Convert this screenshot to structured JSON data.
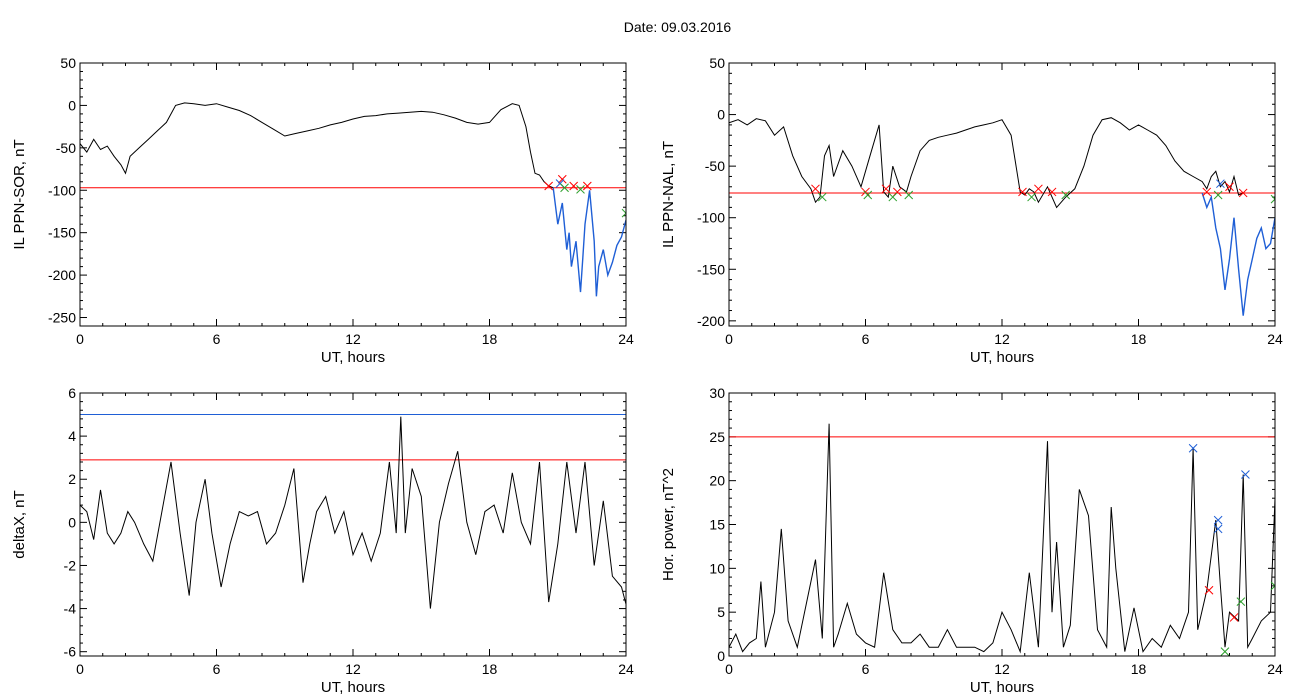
{
  "page": {
    "title": "Date:  09.03.2016"
  },
  "chart_data": [
    {
      "id": "p1",
      "type": "line",
      "xlabel": "UT, hours",
      "ylabel": "IL PPN-SOR, nT",
      "xlim": [
        0,
        24
      ],
      "ylim": [
        -260,
        50
      ],
      "xticks": [
        0,
        6,
        12,
        18,
        24
      ],
      "xtick_labels": [
        "0",
        "6",
        "12",
        "18",
        "24"
      ],
      "yticks": [
        50,
        0,
        -50,
        -100,
        -150,
        -200,
        -250
      ],
      "ytick_labels": [
        "50",
        "0",
        "-50",
        "-100",
        "-150",
        "-200",
        "-250"
      ],
      "series": [
        {
          "color": "#000000",
          "x": [
            0,
            0.3,
            0.6,
            0.9,
            1.2,
            1.5,
            1.8,
            2.0,
            2.2,
            2.6,
            3.0,
            3.4,
            3.8,
            4.2,
            4.6,
            5.0,
            5.5,
            6.0,
            6.5,
            7.0,
            7.5,
            8.0,
            8.5,
            9.0,
            9.5,
            10.0,
            10.5,
            11.0,
            11.5,
            12.0,
            12.5,
            13.0,
            13.5,
            14.0,
            14.5,
            15.0,
            15.5,
            16.0,
            16.5,
            17.0,
            17.5,
            18.0,
            18.5,
            19.0,
            19.3,
            19.6,
            19.8,
            20.0,
            20.2,
            20.4,
            20.6,
            20.8
          ],
          "y": [
            -45,
            -55,
            -40,
            -52,
            -48,
            -60,
            -70,
            -80,
            -60,
            -50,
            -40,
            -30,
            -20,
            0,
            3,
            2,
            0,
            2,
            -2,
            -6,
            -12,
            -20,
            -28,
            -36,
            -33,
            -30,
            -27,
            -23,
            -20,
            -16,
            -13,
            -12,
            -10,
            -9,
            -8,
            -7,
            -8,
            -11,
            -15,
            -20,
            -22,
            -20,
            -5,
            2,
            0,
            -25,
            -55,
            -80,
            -82,
            -90,
            -95,
            -97
          ]
        },
        {
          "color": "#1f5fd6",
          "x": [
            20.8,
            21.0,
            21.2,
            21.4,
            21.5,
            21.6,
            21.8,
            22.0,
            22.1,
            22.2,
            22.4,
            22.6,
            22.7,
            22.8,
            23.0,
            23.2,
            23.4,
            23.6,
            23.8,
            24.0
          ],
          "y": [
            -97,
            -140,
            -115,
            -170,
            -150,
            -190,
            -160,
            -220,
            -180,
            -140,
            -100,
            -160,
            -225,
            -190,
            -170,
            -200,
            -185,
            -165,
            -155,
            -135
          ]
        }
      ],
      "threshold_lines": [
        {
          "y": -97,
          "color": "#ff0000"
        }
      ],
      "markers": [
        {
          "x": 20.6,
          "y": -95,
          "color": "#ff0000"
        },
        {
          "x": 21.2,
          "y": -87,
          "color": "#ff0000"
        },
        {
          "x": 21.7,
          "y": -95,
          "color": "#ff0000"
        },
        {
          "x": 22.3,
          "y": -95,
          "color": "#ff0000"
        },
        {
          "x": 21.1,
          "y": -92,
          "color": "#1f5fd6"
        },
        {
          "x": 21.3,
          "y": -97,
          "color": "#2ca02c"
        },
        {
          "x": 22.0,
          "y": -99,
          "color": "#2ca02c"
        },
        {
          "x": 24.0,
          "y": -127,
          "color": "#2ca02c"
        }
      ]
    },
    {
      "id": "p2",
      "type": "line",
      "xlabel": "UT, hours",
      "ylabel": "IL PPN-NAL, nT",
      "xlim": [
        0,
        24
      ],
      "ylim": [
        -205,
        50
      ],
      "xticks": [
        0,
        6,
        12,
        18,
        24
      ],
      "xtick_labels": [
        "0",
        "6",
        "12",
        "18",
        "24"
      ],
      "yticks": [
        50,
        0,
        -50,
        -100,
        -150,
        -200
      ],
      "ytick_labels": [
        "50",
        "0",
        "-50",
        "-100",
        "-150",
        "-200"
      ],
      "series": [
        {
          "color": "#000000",
          "x": [
            0,
            0.4,
            0.8,
            1.2,
            1.6,
            2.0,
            2.4,
            2.8,
            3.2,
            3.6,
            3.8,
            4.0,
            4.2,
            4.4,
            4.6,
            5.0,
            5.4,
            5.8,
            6.2,
            6.6,
            6.8,
            7.0,
            7.2,
            7.5,
            7.8,
            8.0,
            8.4,
            8.8,
            9.2,
            9.6,
            10.0,
            10.4,
            10.8,
            11.2,
            11.6,
            12.0,
            12.4,
            12.8,
            13.0,
            13.2,
            13.4,
            13.6,
            14.0,
            14.4,
            14.8,
            15.2,
            15.6,
            16.0,
            16.4,
            16.8,
            17.2,
            17.6,
            18.0,
            18.4,
            18.8,
            19.2,
            19.6,
            20.0,
            20.4,
            20.8,
            21.0,
            21.2,
            21.4,
            21.6,
            21.8,
            22.0,
            22.2,
            22.4,
            22.6
          ],
          "y": [
            -8,
            -5,
            -10,
            -4,
            -6,
            -20,
            -12,
            -40,
            -60,
            -72,
            -85,
            -80,
            -40,
            -30,
            -60,
            -35,
            -50,
            -70,
            -40,
            -10,
            -75,
            -80,
            -50,
            -70,
            -75,
            -60,
            -35,
            -25,
            -22,
            -20,
            -18,
            -15,
            -12,
            -10,
            -8,
            -5,
            -20,
            -75,
            -78,
            -72,
            -75,
            -85,
            -70,
            -90,
            -80,
            -72,
            -50,
            -20,
            -5,
            -3,
            -8,
            -15,
            -10,
            -15,
            -20,
            -30,
            -45,
            -55,
            -60,
            -65,
            -72,
            -60,
            -55,
            -70,
            -65,
            -75,
            -60,
            -78,
            -76
          ]
        },
        {
          "color": "#1f5fd6",
          "x": [
            20.8,
            21.0,
            21.2,
            21.4,
            21.6,
            21.8,
            22.0,
            22.2,
            22.4,
            22.6,
            22.8,
            23.0,
            23.2,
            23.4,
            23.6,
            23.8,
            24.0
          ],
          "y": [
            -76,
            -90,
            -80,
            -110,
            -130,
            -170,
            -140,
            -100,
            -150,
            -195,
            -160,
            -140,
            -120,
            -110,
            -130,
            -125,
            -100
          ]
        }
      ],
      "threshold_lines": [
        {
          "y": -76,
          "color": "#ff0000"
        }
      ],
      "markers": [
        {
          "x": 3.8,
          "y": -72,
          "color": "#ff0000"
        },
        {
          "x": 6.0,
          "y": -75,
          "color": "#ff0000"
        },
        {
          "x": 6.9,
          "y": -72,
          "color": "#ff0000"
        },
        {
          "x": 7.4,
          "y": -75,
          "color": "#ff0000"
        },
        {
          "x": 12.9,
          "y": -75,
          "color": "#ff0000"
        },
        {
          "x": 13.6,
          "y": -72,
          "color": "#ff0000"
        },
        {
          "x": 14.2,
          "y": -75,
          "color": "#ff0000"
        },
        {
          "x": 21.0,
          "y": -75,
          "color": "#ff0000"
        },
        {
          "x": 22.0,
          "y": -70,
          "color": "#ff0000"
        },
        {
          "x": 22.6,
          "y": -76,
          "color": "#ff0000"
        },
        {
          "x": 4.1,
          "y": -80,
          "color": "#2ca02c"
        },
        {
          "x": 6.1,
          "y": -78,
          "color": "#2ca02c"
        },
        {
          "x": 7.2,
          "y": -80,
          "color": "#2ca02c"
        },
        {
          "x": 7.9,
          "y": -78,
          "color": "#2ca02c"
        },
        {
          "x": 13.3,
          "y": -80,
          "color": "#2ca02c"
        },
        {
          "x": 14.8,
          "y": -78,
          "color": "#2ca02c"
        },
        {
          "x": 21.5,
          "y": -78,
          "color": "#2ca02c"
        },
        {
          "x": 24.0,
          "y": -82,
          "color": "#2ca02c"
        },
        {
          "x": 21.6,
          "y": -67,
          "color": "#1f5fd6"
        }
      ]
    },
    {
      "id": "p3",
      "type": "line",
      "xlabel": "UT, hours",
      "ylabel": "deltaX, nT",
      "xlim": [
        0,
        24
      ],
      "ylim": [
        -6.2,
        6
      ],
      "xticks": [
        0,
        6,
        12,
        18,
        24
      ],
      "xtick_labels": [
        "0",
        "6",
        "12",
        "18",
        "24"
      ],
      "yticks": [
        6,
        4,
        2,
        0,
        -2,
        -4,
        -6
      ],
      "ytick_labels": [
        "6",
        "4",
        "2",
        "0",
        "-2",
        "-4",
        "-6"
      ],
      "series": [
        {
          "color": "#000000",
          "x": [
            0,
            0.3,
            0.6,
            0.9,
            1.2,
            1.5,
            1.8,
            2.1,
            2.4,
            2.8,
            3.2,
            3.6,
            4.0,
            4.4,
            4.8,
            5.1,
            5.5,
            5.8,
            6.2,
            6.6,
            7.0,
            7.4,
            7.8,
            8.2,
            8.6,
            9.0,
            9.4,
            9.8,
            10.1,
            10.4,
            10.8,
            11.2,
            11.6,
            12.0,
            12.4,
            12.8,
            13.2,
            13.6,
            13.9,
            14.1,
            14.3,
            14.6,
            15.0,
            15.4,
            15.8,
            16.2,
            16.6,
            17.0,
            17.4,
            17.8,
            18.2,
            18.6,
            19.0,
            19.4,
            19.8,
            20.2,
            20.6,
            21.0,
            21.4,
            21.8,
            22.2,
            22.6,
            23.0,
            23.4,
            23.8,
            24.0
          ],
          "y": [
            0.8,
            0.5,
            -0.8,
            1.5,
            -0.5,
            -1.0,
            -0.5,
            0.5,
            0,
            -1.0,
            -1.8,
            0.5,
            2.8,
            -0.5,
            -3.4,
            0,
            2.0,
            -0.5,
            -3.0,
            -1.0,
            0.5,
            0.3,
            0.5,
            -1.0,
            -0.5,
            0.8,
            2.5,
            -2.8,
            -1.0,
            0.5,
            1.2,
            -0.5,
            0.5,
            -1.5,
            -0.5,
            -1.8,
            -0.5,
            2.8,
            -0.5,
            4.9,
            -0.5,
            2.5,
            1.2,
            -4.0,
            0,
            1.8,
            3.3,
            0,
            -1.5,
            0.5,
            0.8,
            -0.5,
            2.3,
            0,
            -1.0,
            2.8,
            -3.7,
            -1.0,
            2.8,
            -0.5,
            2.8,
            -2.0,
            1.0,
            -2.5,
            -3.0,
            -3.8
          ]
        }
      ],
      "threshold_lines": [
        {
          "y": 5.0,
          "color": "#1f5fd6"
        },
        {
          "y": 2.9,
          "color": "#ff0000"
        }
      ],
      "markers": []
    },
    {
      "id": "p4",
      "type": "line",
      "xlabel": "UT, hours",
      "ylabel": "Hor. power, nT^2",
      "xlim": [
        0,
        24
      ],
      "ylim": [
        0,
        30
      ],
      "xticks": [
        0,
        6,
        12,
        18,
        24
      ],
      "xtick_labels": [
        "0",
        "6",
        "12",
        "18",
        "24"
      ],
      "yticks": [
        30,
        25,
        20,
        15,
        10,
        5,
        0
      ],
      "ytick_labels": [
        "30",
        "25",
        "20",
        "15",
        "10",
        "5",
        "0"
      ],
      "series": [
        {
          "color": "#000000",
          "x": [
            0,
            0.3,
            0.6,
            0.9,
            1.2,
            1.4,
            1.6,
            2.0,
            2.3,
            2.6,
            3.0,
            3.4,
            3.8,
            4.1,
            4.4,
            4.6,
            4.8,
            5.2,
            5.6,
            6.0,
            6.4,
            6.8,
            7.2,
            7.6,
            8.0,
            8.4,
            8.8,
            9.2,
            9.6,
            10.0,
            10.4,
            10.8,
            11.2,
            11.6,
            12.0,
            12.4,
            12.8,
            13.2,
            13.6,
            14.0,
            14.2,
            14.4,
            14.7,
            15.0,
            15.4,
            15.8,
            16.2,
            16.6,
            16.8,
            17.0,
            17.4,
            17.8,
            18.2,
            18.6,
            19.0,
            19.4,
            19.8,
            20.2,
            20.4,
            20.6,
            21.0,
            21.4,
            21.6,
            21.8,
            22.0,
            22.4,
            22.6,
            22.8,
            23.0,
            23.4,
            23.8,
            24.0
          ],
          "y": [
            1.0,
            2.5,
            0.5,
            1.5,
            2.0,
            8.5,
            1.0,
            5.0,
            14.5,
            4.0,
            1.0,
            6.0,
            11.0,
            2.0,
            26.5,
            1.0,
            2.5,
            6.0,
            2.5,
            1.5,
            1.0,
            9.5,
            3.0,
            1.5,
            1.5,
            2.5,
            1.0,
            1.0,
            3.0,
            1.0,
            1.0,
            1.0,
            0.5,
            1.5,
            5.0,
            3.0,
            0.5,
            9.5,
            1.0,
            24.5,
            5.0,
            13.0,
            1.0,
            3.5,
            19.0,
            16.0,
            3.0,
            1.0,
            17.0,
            10.0,
            0.5,
            5.5,
            0.5,
            2.0,
            1.0,
            3.5,
            2.0,
            5.0,
            23.7,
            3.0,
            7.5,
            15.5,
            8.0,
            1.0,
            5.0,
            4.0,
            20.7,
            1.0,
            2.0,
            4.0,
            5.0,
            18.0
          ]
        }
      ],
      "threshold_lines": [
        {
          "y": 25.0,
          "color": "#ff0000"
        }
      ],
      "markers": [
        {
          "x": 20.4,
          "y": 23.7,
          "color": "#1f5fd6"
        },
        {
          "x": 21.5,
          "y": 15.5,
          "color": "#1f5fd6"
        },
        {
          "x": 21.5,
          "y": 14.5,
          "color": "#1f5fd6"
        },
        {
          "x": 22.7,
          "y": 20.7,
          "color": "#1f5fd6"
        },
        {
          "x": 21.1,
          "y": 7.5,
          "color": "#ff0000"
        },
        {
          "x": 22.2,
          "y": 4.4,
          "color": "#ff0000"
        },
        {
          "x": 21.8,
          "y": 0.5,
          "color": "#2ca02c"
        },
        {
          "x": 22.5,
          "y": 6.2,
          "color": "#2ca02c"
        },
        {
          "x": 24.0,
          "y": 8.0,
          "color": "#2ca02c"
        }
      ]
    }
  ]
}
